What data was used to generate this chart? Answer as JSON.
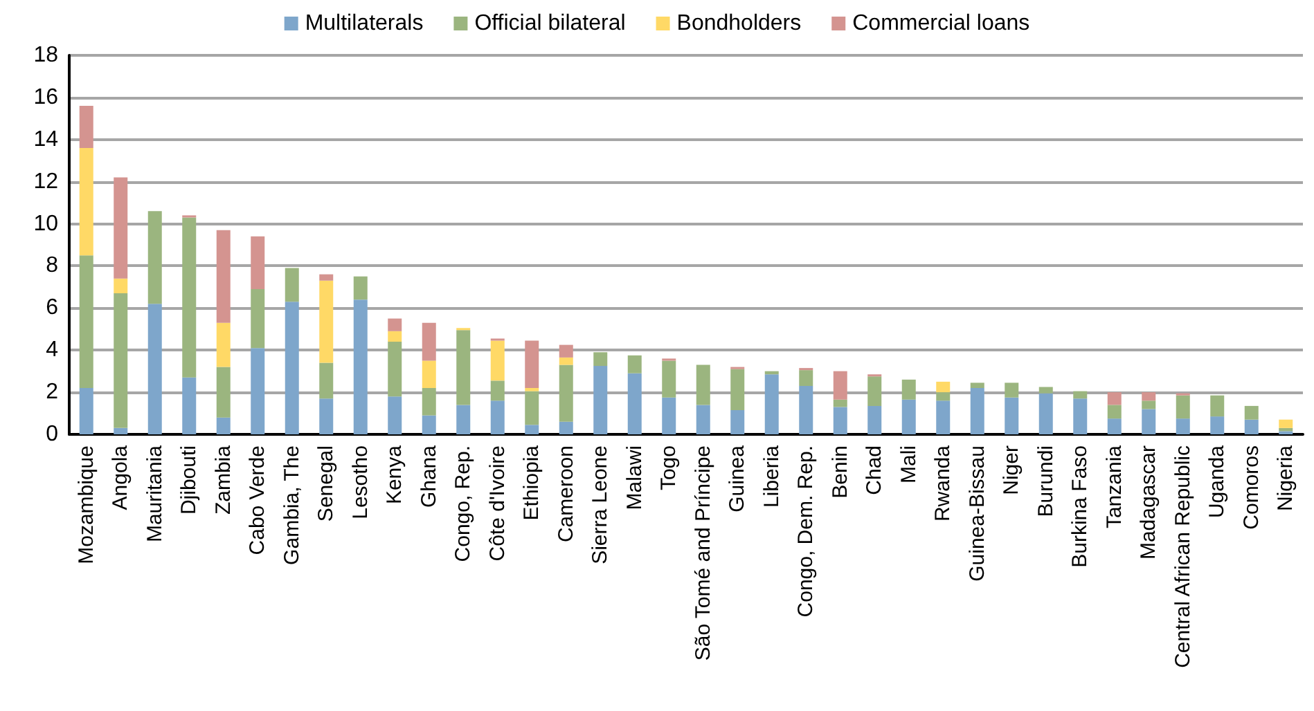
{
  "chart_data": {
    "type": "bar",
    "stacked": true,
    "categories": [
      "Mozambique",
      "Angola",
      "Mauritania",
      "Djibouti",
      "Zambia",
      "Cabo Verde",
      "Gambia, The",
      "Senegal",
      "Lesotho",
      "Kenya",
      "Ghana",
      "Congo, Rep.",
      "Côte d'Ivoire",
      "Ethiopia",
      "Cameroon",
      "Sierra Leone",
      "Malawi",
      "Togo",
      "São Tomé and Príncipe",
      "Guinea",
      "Liberia",
      "Congo, Dem. Rep.",
      "Benin",
      "Chad",
      "Mali",
      "Rwanda",
      "Guinea-Bissau",
      "Niger",
      "Burundi",
      "Burkina Faso",
      "Tanzania",
      "Madagascar",
      "Central African Republic",
      "Uganda",
      "Comoros",
      "Nigeria"
    ],
    "series": [
      {
        "name": "Multilaterals",
        "color": "#7ea6cb",
        "values": [
          2.2,
          0.3,
          6.2,
          2.7,
          0.8,
          4.1,
          6.3,
          1.7,
          6.4,
          1.8,
          0.9,
          1.4,
          1.6,
          0.45,
          0.6,
          3.25,
          2.9,
          1.75,
          1.4,
          1.15,
          2.85,
          2.3,
          1.3,
          1.35,
          1.65,
          1.6,
          2.2,
          1.75,
          1.95,
          1.7,
          0.75,
          1.2,
          0.75,
          0.85,
          0.7,
          0.15
        ]
      },
      {
        "name": "Official bilateral",
        "color": "#9bb57f",
        "values": [
          6.3,
          6.4,
          4.4,
          7.6,
          2.4,
          2.8,
          1.6,
          1.7,
          1.1,
          2.6,
          1.3,
          3.55,
          0.95,
          1.6,
          2.7,
          0.65,
          0.85,
          1.75,
          1.9,
          1.95,
          0.15,
          0.75,
          0.35,
          1.4,
          0.95,
          0.4,
          0.25,
          0.7,
          0.3,
          0.35,
          0.65,
          0.4,
          1.1,
          1.0,
          0.65,
          0.15
        ]
      },
      {
        "name": "Bondholders",
        "color": "#ffd966",
        "values": [
          5.1,
          0.7,
          0,
          0,
          2.1,
          0,
          0,
          3.9,
          0,
          0.5,
          1.3,
          0.1,
          1.9,
          0.15,
          0.35,
          0,
          0,
          0,
          0,
          0,
          0,
          0,
          0,
          0,
          0,
          0.5,
          0,
          0,
          0,
          0,
          0,
          0,
          0,
          0,
          0,
          0.4
        ]
      },
      {
        "name": "Commercial loans",
        "color": "#d49490",
        "values": [
          2.0,
          4.8,
          0,
          0.1,
          4.4,
          2.5,
          0,
          0.3,
          0,
          0.6,
          1.8,
          0,
          0.1,
          2.25,
          0.6,
          0,
          0,
          0.1,
          0,
          0.1,
          0,
          0.1,
          1.35,
          0.1,
          0,
          0,
          0,
          0,
          0,
          0,
          0.6,
          0.4,
          0.1,
          0,
          0,
          0
        ]
      }
    ],
    "ylim": [
      0,
      18
    ],
    "yticks": [
      0,
      2,
      4,
      6,
      8,
      10,
      12,
      14,
      16,
      18
    ],
    "grid": "y",
    "legend": "top"
  }
}
